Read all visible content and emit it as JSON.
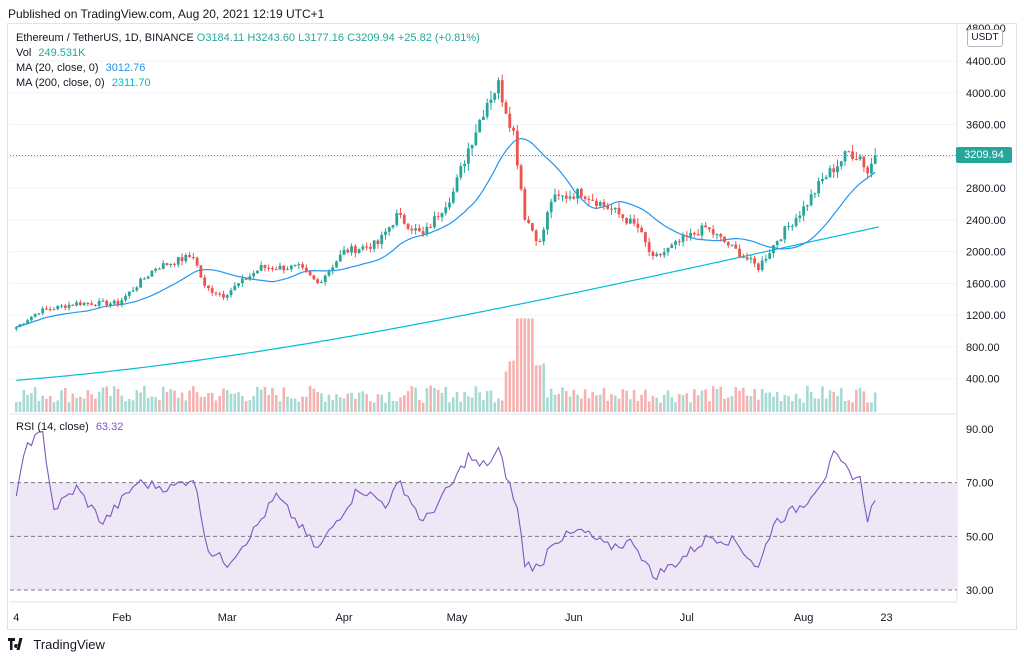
{
  "header": {
    "published": "Published on TradingView.com, Aug 20, 2021 12:19 UTC+1"
  },
  "legend": {
    "symbol": "Ethereum / TetherUS, 1D, BINANCE",
    "ohlc": {
      "o": "O3184.11",
      "h": "H3243.60",
      "l": "L3177.16",
      "c": "C3209.94",
      "chg": "+25.82 (+0.81%)"
    },
    "vol_label": "Vol",
    "vol_value": "249.531K",
    "ma20_label": "MA (20, close, 0)",
    "ma20_value": "3012.76",
    "ma200_label": "MA (200, close, 0)",
    "ma200_value": "2311.70",
    "rsi_label": "RSI (14, close)",
    "rsi_value": "63.32"
  },
  "currency": "USDT",
  "last_price": "3209.94",
  "footer": {
    "brand": "TradingView"
  },
  "colors": {
    "up": "#26a69a",
    "down": "#ef5350",
    "ma20": "#2196f3",
    "ma200": "#00bcd4",
    "rsi": "#7e57c2",
    "rsi_band": "#ede7f6"
  },
  "chart_data": [
    {
      "type": "candlestick",
      "title": "Ethereum / TetherUS, 1D, BINANCE",
      "x_tick_labels": [
        "4",
        "Feb",
        "Mar",
        "Apr",
        "May",
        "Jun",
        "Jul",
        "Aug",
        "23"
      ],
      "y_tick_labels": [
        "400.00",
        "800.00",
        "1200.00",
        "1600.00",
        "2000.00",
        "2400.00",
        "2800.00",
        "3200.00",
        "3600.00",
        "4000.00",
        "4400.00",
        "4800.00"
      ],
      "ylim": [
        0,
        4800
      ],
      "close_keypoints": [
        [
          "2021-01-04",
          1050
        ],
        [
          "2021-01-10",
          1250
        ],
        [
          "2021-01-20",
          1350
        ],
        [
          "2021-01-31",
          1350
        ],
        [
          "2021-02-10",
          1800
        ],
        [
          "2021-02-20",
          1950
        ],
        [
          "2021-02-23",
          1550
        ],
        [
          "2021-02-28",
          1450
        ],
        [
          "2021-03-10",
          1800
        ],
        [
          "2021-03-20",
          1800
        ],
        [
          "2021-03-25",
          1600
        ],
        [
          "2021-04-01",
          2000
        ],
        [
          "2021-04-10",
          2100
        ],
        [
          "2021-04-15",
          2450
        ],
        [
          "2021-04-22",
          2200
        ],
        [
          "2021-04-30",
          2750
        ],
        [
          "2021-05-04",
          3300
        ],
        [
          "2021-05-09",
          3900
        ],
        [
          "2021-05-12",
          4100
        ],
        [
          "2021-05-16",
          3500
        ],
        [
          "2021-05-19",
          2450
        ],
        [
          "2021-05-23",
          2100
        ],
        [
          "2021-05-26",
          2650
        ],
        [
          "2021-06-03",
          2750
        ],
        [
          "2021-06-12",
          2500
        ],
        [
          "2021-06-18",
          2300
        ],
        [
          "2021-06-22",
          1900
        ],
        [
          "2021-06-30",
          2150
        ],
        [
          "2021-07-06",
          2300
        ],
        [
          "2021-07-13",
          2050
        ],
        [
          "2021-07-20",
          1800
        ],
        [
          "2021-07-25",
          2150
        ],
        [
          "2021-08-01",
          2550
        ],
        [
          "2021-08-06",
          2900
        ],
        [
          "2021-08-13",
          3250
        ],
        [
          "2021-08-16",
          3200
        ],
        [
          "2021-08-18",
          3000
        ],
        [
          "2021-08-20",
          3209.94
        ]
      ],
      "volume_peak_thousands": 1200,
      "volume_last_thousands": 249.531,
      "ma20_last": 3012.76,
      "ma200_last": 2311.7
    },
    {
      "type": "line",
      "title": "RSI (14, close)",
      "x_tick_labels": [
        "4",
        "Feb",
        "Mar",
        "Apr",
        "May",
        "Jun",
        "Jul",
        "Aug",
        "23"
      ],
      "y_tick_labels": [
        "30.00",
        "50.00",
        "70.00",
        "90.00"
      ],
      "ylim": [
        25,
        95
      ],
      "bands": [
        30,
        50,
        70
      ],
      "keypoints": [
        [
          "2021-01-04",
          65
        ],
        [
          "2021-01-07",
          85
        ],
        [
          "2021-01-11",
          88
        ],
        [
          "2021-01-14",
          60
        ],
        [
          "2021-01-20",
          68
        ],
        [
          "2021-01-27",
          55
        ],
        [
          "2021-02-05",
          70
        ],
        [
          "2021-02-14",
          68
        ],
        [
          "2021-02-20",
          72
        ],
        [
          "2021-02-24",
          45
        ],
        [
          "2021-03-01",
          40
        ],
        [
          "2021-03-08",
          52
        ],
        [
          "2021-03-14",
          65
        ],
        [
          "2021-03-18",
          58
        ],
        [
          "2021-03-25",
          45
        ],
        [
          "2021-04-01",
          60
        ],
        [
          "2021-04-05",
          68
        ],
        [
          "2021-04-12",
          62
        ],
        [
          "2021-04-16",
          70
        ],
        [
          "2021-04-22",
          55
        ],
        [
          "2021-04-30",
          70
        ],
        [
          "2021-05-04",
          80
        ],
        [
          "2021-05-07",
          76
        ],
        [
          "2021-05-10",
          78
        ],
        [
          "2021-05-12",
          82
        ],
        [
          "2021-05-17",
          60
        ],
        [
          "2021-05-19",
          40
        ],
        [
          "2021-05-23",
          38
        ],
        [
          "2021-05-26",
          48
        ],
        [
          "2021-06-03",
          52
        ],
        [
          "2021-06-10",
          46
        ],
        [
          "2021-06-17",
          48
        ],
        [
          "2021-06-22",
          35
        ],
        [
          "2021-06-28",
          40
        ],
        [
          "2021-07-07",
          50
        ],
        [
          "2021-07-14",
          48
        ],
        [
          "2021-07-20",
          38
        ],
        [
          "2021-07-24",
          55
        ],
        [
          "2021-08-01",
          62
        ],
        [
          "2021-08-07",
          73
        ],
        [
          "2021-08-09",
          80
        ],
        [
          "2021-08-13",
          74
        ],
        [
          "2021-08-16",
          71
        ],
        [
          "2021-08-18",
          57
        ],
        [
          "2021-08-20",
          63.32
        ]
      ]
    }
  ]
}
